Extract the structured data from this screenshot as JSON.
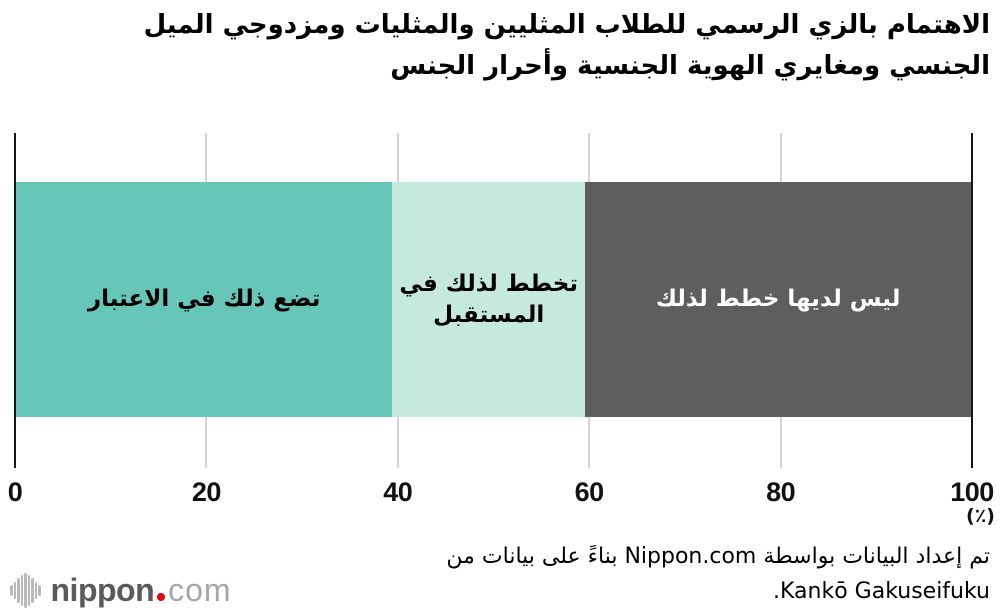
{
  "title": {
    "line1": "الاهتمام بالزي الرسمي للطلاب المثليين والمثليات ومزدوجي الميل",
    "line2": "الجنسي ومغايري الهوية الجنسية وأحرار الجنس"
  },
  "chart_data": {
    "type": "bar",
    "subtype": "horizontal-stacked-single-bar",
    "title": "الاهتمام بالزي الرسمي للطلاب المثليين والمثليات ومزدوجي الميل الجنسي ومغايري الهوية الجنسية وأحرار الجنس",
    "segments": [
      {
        "label": "تضع ذلك في الاعتبار",
        "value": 39.4,
        "color": "#66c6b8",
        "text_color": "#000000"
      },
      {
        "label": "تخطط لذلك في المستقبل",
        "value": 20.2,
        "color": "#c5e9df",
        "text_color": "#000000"
      },
      {
        "label": "ليس لديها خطط لذلك",
        "value": 40.4,
        "color": "#5e5e5e",
        "text_color": "#ffffff"
      }
    ],
    "xticks": [
      0,
      20,
      40,
      60,
      80,
      100
    ],
    "xlim": [
      0,
      100
    ],
    "xlabel": "(٪)",
    "grid": true,
    "legend": "labels-inside-segments",
    "axis_color": "#161616",
    "grid_color": "#d4d4d4"
  },
  "source": {
    "line1": "تم إعداد البيانات بواسطة Nippon.com بناءً على بيانات من",
    "line2": "Kankō Gakuseifuku."
  },
  "logo": {
    "icon": "waveform-icon",
    "name_bold": "nippon",
    "name_light": "com",
    "dot_color": "#e60012",
    "text_color_bold": "#5a5a5a",
    "text_color_light": "#a6a6a6"
  }
}
